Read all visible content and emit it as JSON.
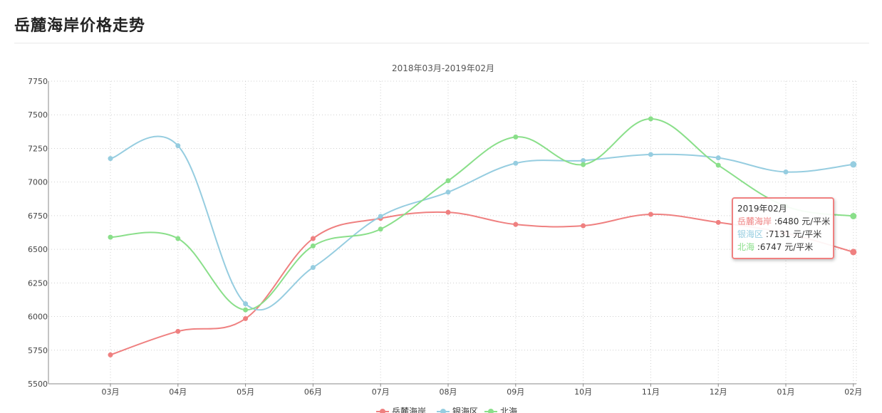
{
  "page": {
    "title": "岳麓海岸价格走势"
  },
  "colors": {
    "series1": "#ef8080",
    "series2": "#96cde0",
    "series3": "#8adf8a"
  },
  "chart_data": {
    "type": "line",
    "subtitle": "2018年03月-2019年02月",
    "categories": [
      "03月",
      "04月",
      "05月",
      "06月",
      "07月",
      "08月",
      "09月",
      "10月",
      "11月",
      "12月",
      "01月",
      "02月"
    ],
    "y_ticks": [
      5500,
      5750,
      6000,
      6250,
      6500,
      6750,
      7000,
      7250,
      7500,
      7750
    ],
    "ylim": [
      5500,
      7750
    ],
    "grid": true,
    "smooth": true,
    "legend_position": "bottom-center",
    "series": [
      {
        "name": "岳麓海岸",
        "color": "#ef8080",
        "values": [
          5715,
          5890,
          5985,
          6580,
          6730,
          6775,
          6685,
          6675,
          6760,
          6700,
          6620,
          6480
        ]
      },
      {
        "name": "银海区",
        "color": "#96cde0",
        "values": [
          7175,
          7270,
          6095,
          6365,
          6745,
          6925,
          7140,
          7160,
          7205,
          7180,
          7075,
          7131
        ]
      },
      {
        "name": "北海",
        "color": "#8adf8a",
        "values": [
          6590,
          6580,
          6050,
          6525,
          6650,
          7010,
          7335,
          7130,
          7470,
          7125,
          6820,
          6747
        ]
      }
    ]
  },
  "tooltip": {
    "title": "2019年02月",
    "rows": [
      {
        "name": "岳麓海岸",
        "sep": " :",
        "value": "6480",
        "unit": " 元/平米"
      },
      {
        "name": "银海区",
        "sep": " :",
        "value": "7131",
        "unit": " 元/平米"
      },
      {
        "name": "北海",
        "sep": " :",
        "value": "6747",
        "unit": " 元/平米"
      }
    ]
  }
}
